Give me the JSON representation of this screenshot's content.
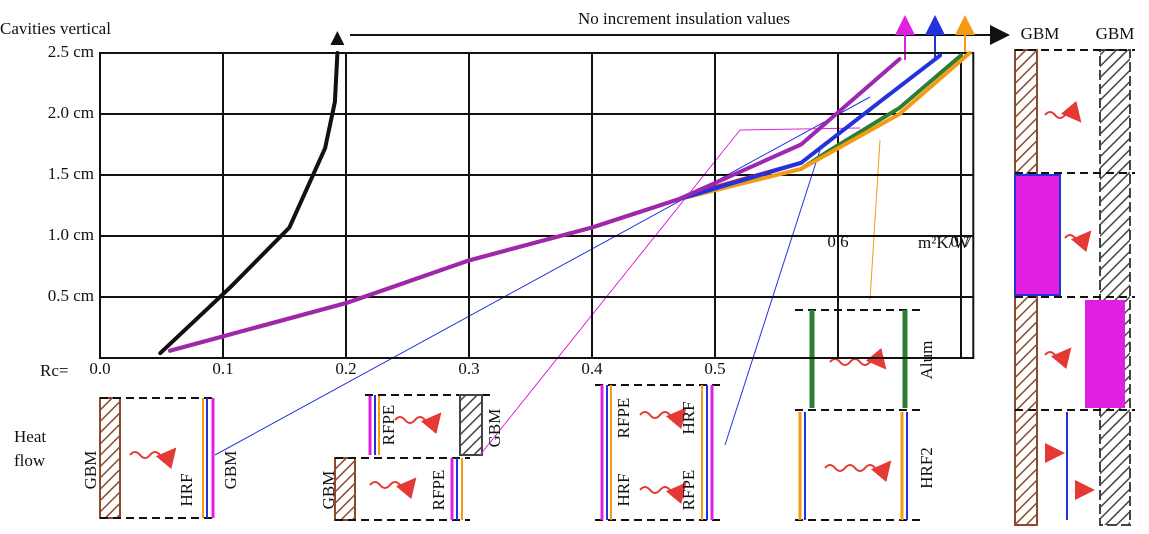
{
  "chart_data": {
    "type": "line",
    "title": "Cavities vertical",
    "subtitle": "No increment insulation values",
    "x_label": "m²K/W",
    "x_prefix": "Rc=",
    "xlim": [
      0,
      0.71
    ],
    "ylim": [
      0,
      2.5
    ],
    "xticks": [
      {
        "value": 0,
        "label": "0.0"
      },
      0.1,
      0.2,
      0.3,
      0.4,
      0.5,
      0.6,
      0.7
    ],
    "yticks": [
      {
        "value": 0.5,
        "label": "0.5 cm"
      },
      {
        "value": 1.0,
        "label": "1.0 cm"
      },
      {
        "value": 1.5,
        "label": "1.5 cm"
      },
      {
        "value": 2.0,
        "label": "2.0 cm"
      },
      {
        "value": 2.5,
        "label": "2.5 cm"
      }
    ],
    "grid": true,
    "series": [
      {
        "color": "#111111",
        "x": [
          0.049,
          0.106,
          0.154,
          0.183,
          0.191,
          0.193
        ],
        "values": [
          0.04,
          0.58,
          1.07,
          1.72,
          2.1,
          2.5
        ]
      },
      {
        "color": "#c2185b",
        "x": [
          0.057,
          0.2,
          0.3,
          0.4,
          0.47,
          0.5,
          0.57
        ],
        "values": [
          0.06,
          0.45,
          0.8,
          1.07,
          1.3,
          1.4,
          1.6
        ]
      },
      {
        "color": "#2e7d32",
        "x": [
          0.57,
          0.593,
          0.65,
          0.7
        ],
        "values": [
          1.55,
          1.7,
          2.05,
          2.48
        ]
      },
      {
        "color": "#f39c12",
        "x": [
          0.057,
          0.2,
          0.3,
          0.4,
          0.47,
          0.57,
          0.65,
          0.707
        ],
        "values": [
          0.06,
          0.45,
          0.8,
          1.07,
          1.3,
          1.55,
          2.0,
          2.5
        ]
      },
      {
        "color": "#2233dd",
        "x": [
          0.47,
          0.57,
          0.634,
          0.683
        ],
        "values": [
          1.3,
          1.6,
          2.1,
          2.48
        ]
      },
      {
        "color": "#9c27b0",
        "x": [
          0.057,
          0.2,
          0.3,
          0.4,
          0.47,
          0.57,
          0.65
        ],
        "values": [
          0.06,
          0.45,
          0.8,
          1.07,
          1.3,
          1.75,
          2.45
        ]
      }
    ],
    "annotations": [
      "GBM",
      "GBM",
      "Heat flow",
      "GBM",
      "HRF",
      "GBM",
      "RFPE",
      "GBM",
      "GBM",
      "RFPE",
      "RFPE",
      "HRF",
      "HRF",
      "RFPE",
      "Alum",
      "HRF2"
    ]
  }
}
